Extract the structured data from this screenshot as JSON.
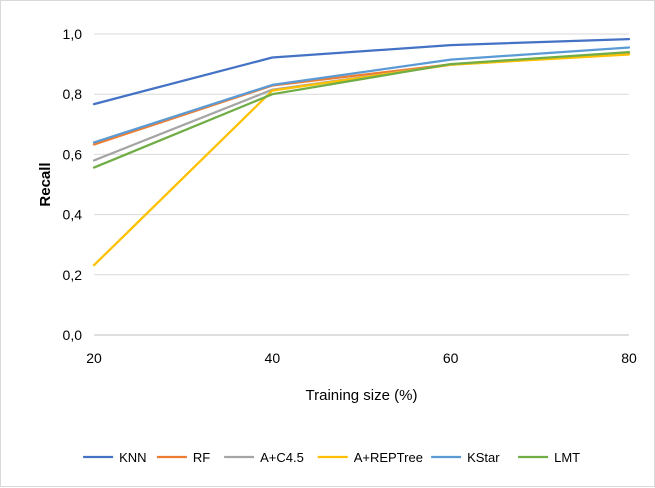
{
  "chart_data": {
    "type": "line",
    "title": "",
    "xlabel": "Training size (%)",
    "ylabel": "Recall",
    "x": [
      20,
      40,
      60,
      80
    ],
    "xlim": [
      20,
      80
    ],
    "ylim": [
      0,
      1
    ],
    "y_ticks": [
      "0,0",
      "0,2",
      "0,4",
      "0,6",
      "0,8",
      "1,0"
    ],
    "x_ticks": [
      "20",
      "40",
      "60",
      "80"
    ],
    "grid": "horizontal",
    "legend_position": "bottom",
    "series": [
      {
        "name": "KNN",
        "color": "#4472c4",
        "values": [
          0.767,
          0.922,
          0.963,
          0.983
        ]
      },
      {
        "name": "RF",
        "color": "#ed7d31",
        "values": [
          0.633,
          0.829,
          0.899,
          0.938
        ]
      },
      {
        "name": "A+C4.5",
        "color": "#a5a5a5",
        "values": [
          0.58,
          0.815,
          0.898,
          0.935
        ]
      },
      {
        "name": "A+REPTree",
        "color": "#ffc000",
        "values": [
          0.232,
          0.812,
          0.898,
          0.932
        ]
      },
      {
        "name": "KStar",
        "color": "#5b9bd5",
        "values": [
          0.64,
          0.831,
          0.915,
          0.955
        ]
      },
      {
        "name": "LMT",
        "color": "#70ad47",
        "values": [
          0.556,
          0.8,
          0.9,
          0.94
        ]
      }
    ]
  }
}
